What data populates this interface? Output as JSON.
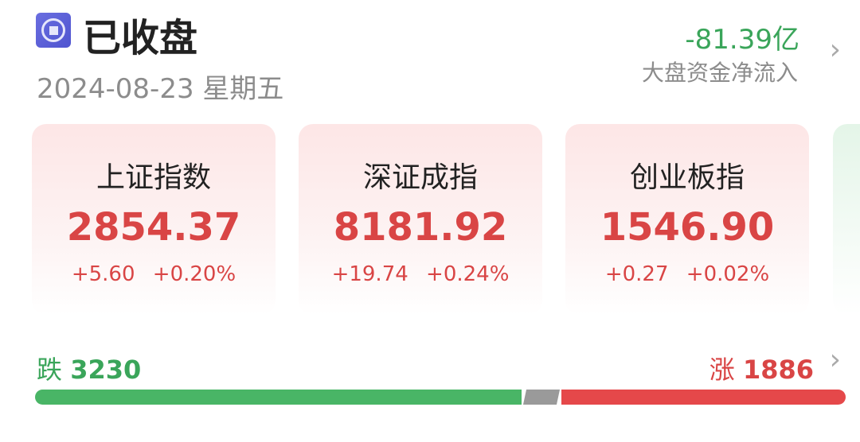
{
  "header": {
    "status": "已收盘",
    "date": "2024-08-23",
    "weekday": "星期五",
    "fund_flow_value": "-81.39亿",
    "fund_flow_label": "大盘资金净流入"
  },
  "indices": [
    {
      "name": "上证指数",
      "value": "2854.37",
      "change": "+5.60",
      "percent": "+0.20%"
    },
    {
      "name": "深证成指",
      "value": "8181.92",
      "change": "+19.74",
      "percent": "+0.24%"
    },
    {
      "name": "创业板指",
      "value": "1546.90",
      "change": "+0.27",
      "percent": "+0.02%"
    }
  ],
  "breadth": {
    "fall_label": "跌",
    "fall_count": "3230",
    "rise_label": "涨",
    "rise_count": "1886"
  },
  "colors": {
    "up": "#d94545",
    "down": "#3aa55a",
    "flat": "#9a9a9a",
    "status_icon": "#5a5ed8"
  }
}
